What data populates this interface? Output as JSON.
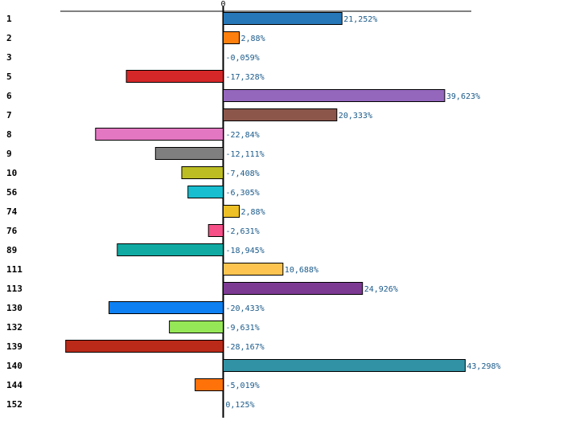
{
  "chart_data": {
    "type": "bar",
    "orientation": "horizontal",
    "title": "",
    "xlabel": "",
    "ylabel": "",
    "zero_label": "0",
    "xlim": [
      -35,
      43.3
    ],
    "grid": false,
    "categories": [
      "1",
      "2",
      "3",
      "5",
      "6",
      "7",
      "8",
      "9",
      "10",
      "56",
      "74",
      "76",
      "89",
      "111",
      "113",
      "130",
      "132",
      "139",
      "140",
      "144",
      "152"
    ],
    "values": [
      21.252,
      2.88,
      -0.059,
      -17.328,
      39.623,
      20.333,
      -22.84,
      -12.111,
      -7.408,
      -6.305,
      2.88,
      -2.631,
      -18.945,
      10.688,
      24.926,
      -20.433,
      -9.631,
      -28.167,
      43.298,
      -5.019,
      0.125
    ],
    "value_labels": [
      "21,252%",
      "2,88%",
      "-0,059%",
      "-17,328%",
      "39,623%",
      "20,333%",
      "-22,84%",
      "-12,111%",
      "-7,408%",
      "-6,305%",
      "2,88%",
      "-2,631%",
      "-18,945%",
      "10,688%",
      "24,926%",
      "-20,433%",
      "-9,631%",
      "-28,167%",
      "43,298%",
      "-5,019%",
      "0,125%"
    ],
    "colors": [
      "#2677b8",
      "#ff7f0e",
      "#2ca02c",
      "#d62728",
      "#9467bd",
      "#8c564b",
      "#e377c2",
      "#7f7f7f",
      "#bcbd22",
      "#17becf",
      "#ecc026",
      "#f74f87",
      "#10aaa2",
      "#fdc550",
      "#7d3a93",
      "#0e80f1",
      "#96e757",
      "#bb2a19",
      "#3292a5",
      "#ff7209",
      "#5e5e5e"
    ]
  }
}
